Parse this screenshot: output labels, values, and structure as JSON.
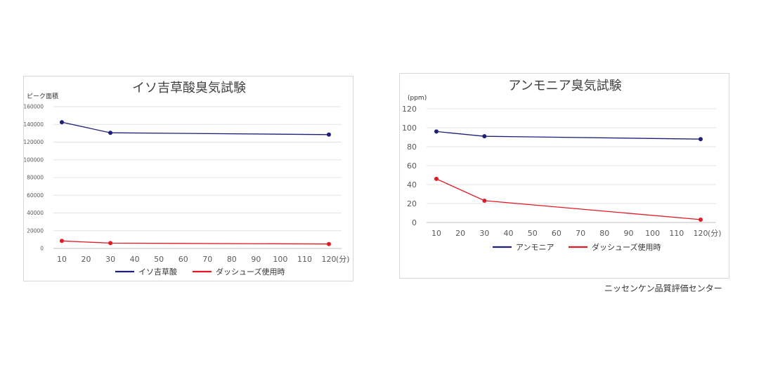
{
  "charts": [
    {
      "type": "line",
      "title": "イソ吉草酸臭気試験",
      "ylabel": "ピーク面積",
      "ylim": [
        0,
        160000
      ],
      "yticks": [
        0,
        20000,
        40000,
        60000,
        80000,
        100000,
        120000,
        140000,
        160000
      ],
      "xlim": [
        10,
        120
      ],
      "xticks": [
        10,
        20,
        30,
        40,
        50,
        60,
        70,
        80,
        90,
        100,
        110,
        120
      ],
      "xunit": "(分)",
      "grid": true,
      "series": [
        {
          "name": "イソ吉草酸",
          "color": "#1f1f7a",
          "x": [
            10,
            30,
            120
          ],
          "y": [
            142500,
            130500,
            128500
          ]
        },
        {
          "name": "ダッシューズ使用時",
          "color": "#e01b24",
          "x": [
            10,
            30,
            120
          ],
          "y": [
            8500,
            6000,
            5000
          ]
        }
      ]
    },
    {
      "type": "line",
      "title": "アンモニア臭気試験",
      "ylabel": "(ppm)",
      "ylim": [
        0,
        120
      ],
      "yticks": [
        0,
        20,
        40,
        60,
        80,
        100,
        120
      ],
      "xlim": [
        10,
        120
      ],
      "xticks": [
        10,
        20,
        30,
        40,
        50,
        60,
        70,
        80,
        90,
        100,
        110,
        120
      ],
      "xunit": "(分)",
      "grid": true,
      "series": [
        {
          "name": "アンモニア",
          "color": "#1f1f7a",
          "x": [
            10,
            30,
            120
          ],
          "y": [
            96,
            91,
            88
          ]
        },
        {
          "name": "ダッシューズ使用時",
          "color": "#e01b24",
          "x": [
            10,
            30,
            120
          ],
          "y": [
            46,
            23,
            3
          ]
        }
      ]
    }
  ],
  "credit": "ニッセンケン品質評価センター"
}
